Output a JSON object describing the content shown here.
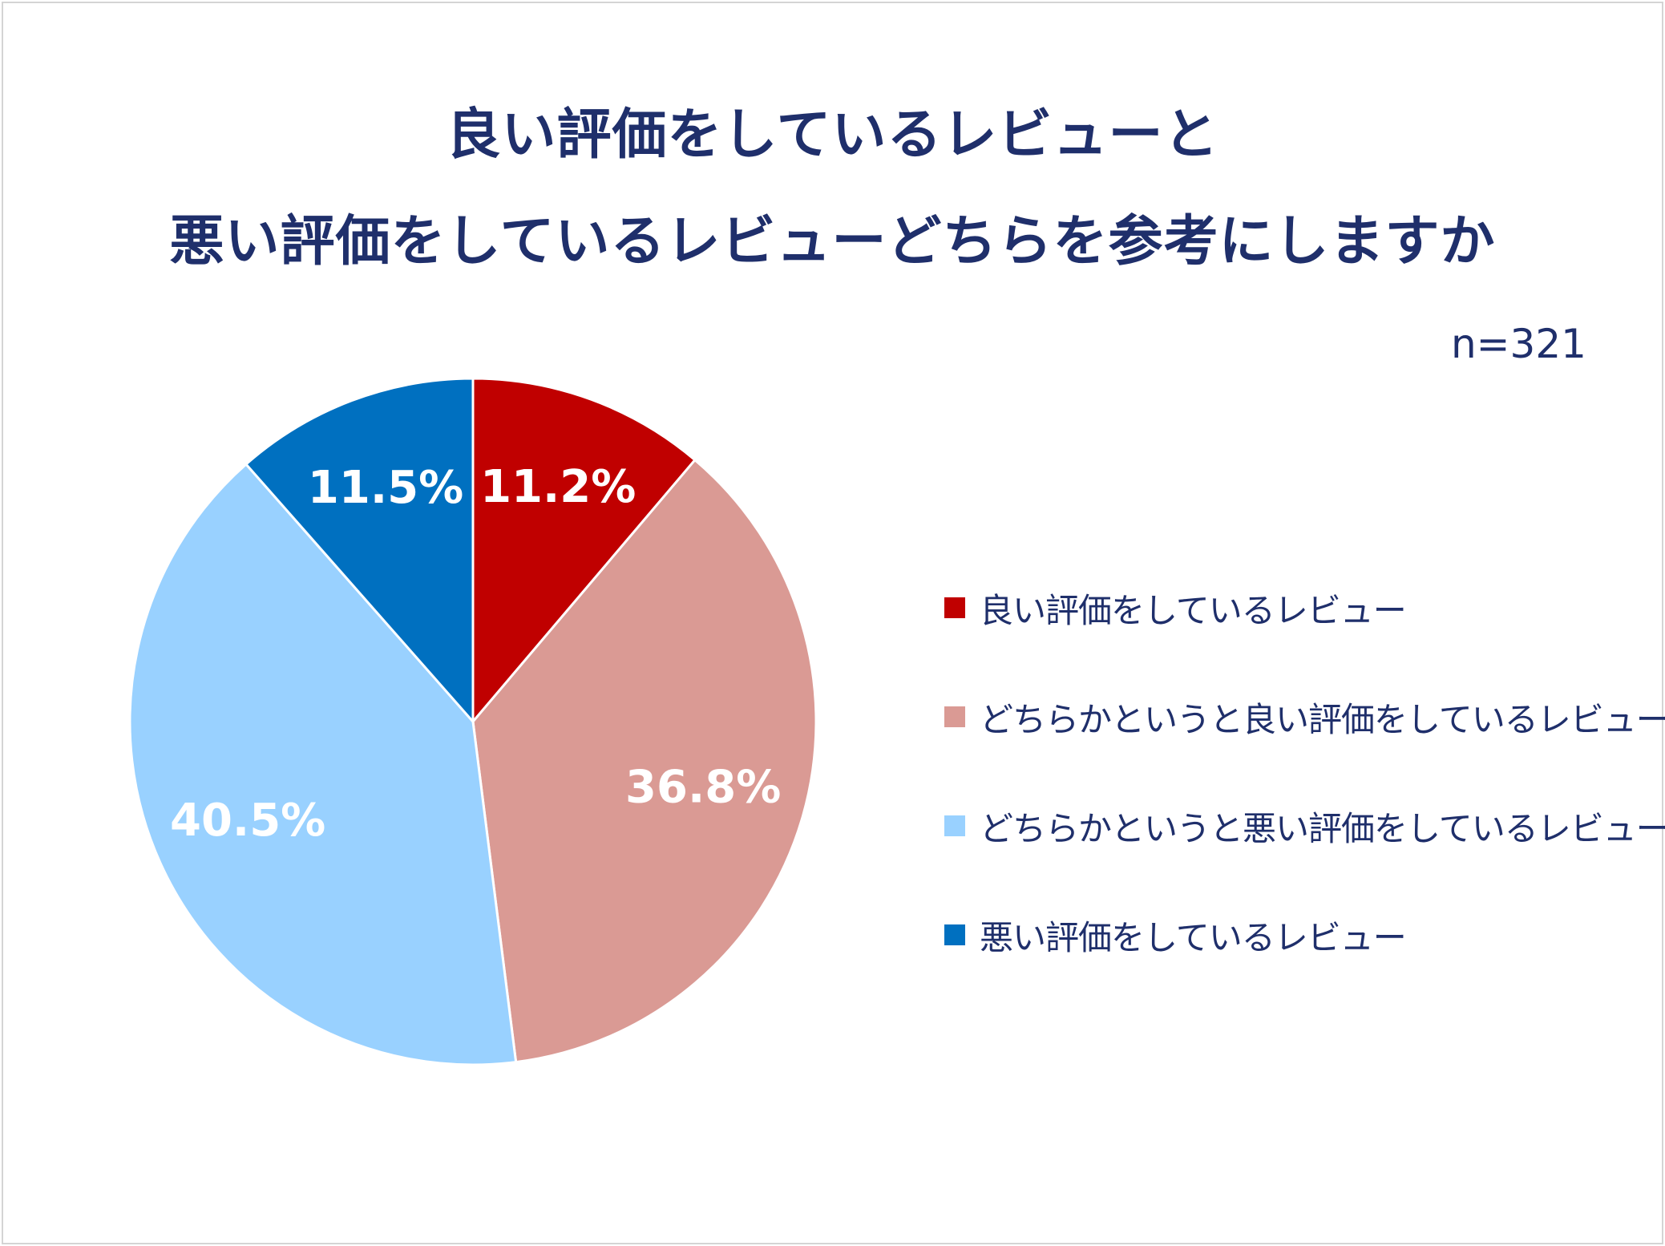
{
  "chart_data": {
    "type": "pie",
    "title": "良い評価をしているレビューと",
    "subtitle": "悪い評価をしているレビューどちらを参考にしますか",
    "note": "n=321",
    "unit": "%",
    "slices": [
      {
        "name": "良い評価をしているレビュー",
        "value": 11.2,
        "label": "11.2%",
        "color": "#c00000"
      },
      {
        "name": "どちらかというと良い評価をしているレビュー",
        "value": 36.8,
        "label": "36.8%",
        "color": "#da9a94"
      },
      {
        "name": "どちらかというと悪い評価をしているレビュー",
        "value": 40.5,
        "label": "40.5%",
        "color": "#99d1ff"
      },
      {
        "name": "悪い評価をしているレビュー",
        "value": 11.5,
        "label": "11.5%",
        "color": "#0070c0"
      }
    ],
    "legend_position": "right",
    "start_angle": "top",
    "direction": "clockwise"
  }
}
